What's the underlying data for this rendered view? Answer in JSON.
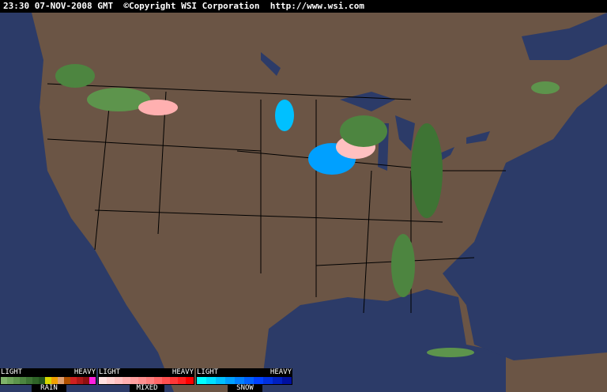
{
  "header": {
    "text": "23:30 07-NOV-2008 GMT  ©Copyright WSI Corporation  http://www.wsi.com"
  },
  "colors": {
    "ocean": "#2c3b68",
    "land": "#6b5545",
    "borders": "#000000"
  },
  "legend": [
    {
      "name": "RAIN",
      "light": "LIGHT",
      "heavy": "HEAVY",
      "colors": [
        "#7fb26a",
        "#6ea35a",
        "#5d944c",
        "#4d8540",
        "#3e7434",
        "#2f6428",
        "#24561e",
        "#d8d800",
        "#f0a000",
        "#e0a070",
        "#b05000",
        "#d02020",
        "#b01818",
        "#901010",
        "#ff20e0"
      ]
    },
    {
      "name": "MIXED",
      "light": "LIGHT",
      "heavy": "HEAVY",
      "colors": [
        "#ffe0e0",
        "#ffd0d0",
        "#ffc0c0",
        "#ffb0b0",
        "#ffa0a0",
        "#ff9090",
        "#ff8080",
        "#ff6868",
        "#ff5050",
        "#ff3838",
        "#ff2020",
        "#ff0000"
      ]
    },
    {
      "name": "SNOW",
      "light": "LIGHT",
      "heavy": "HEAVY",
      "colors": [
        "#00ffff",
        "#00e0ff",
        "#00c0ff",
        "#00a0ff",
        "#0080ff",
        "#0060ff",
        "#0040ff",
        "#0030e0",
        "#0020c0",
        "#0010a0"
      ]
    }
  ]
}
